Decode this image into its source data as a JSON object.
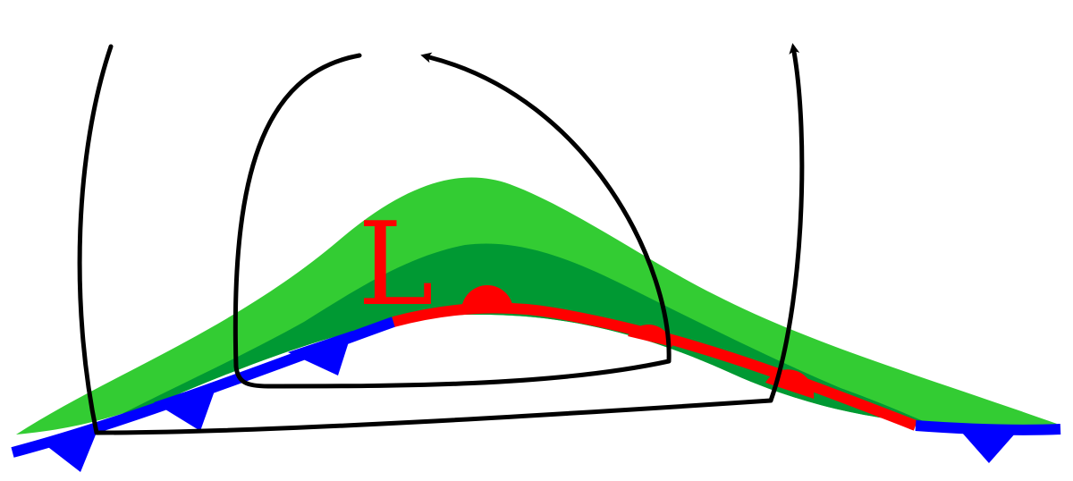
{
  "pressure_label": "L",
  "colors": {
    "precip_outer": "#33cc33",
    "precip_inner": "#009933",
    "warm_front": "#ff0000",
    "cold_front": "#0000ff",
    "low_label": "#ff0000",
    "airflow": "#000000",
    "background": "#ffffff"
  },
  "legend_icons": {
    "cold_front_symbol": "triangle",
    "warm_front_symbol": "semicircle",
    "airflow_symbol": "arrowhead"
  }
}
